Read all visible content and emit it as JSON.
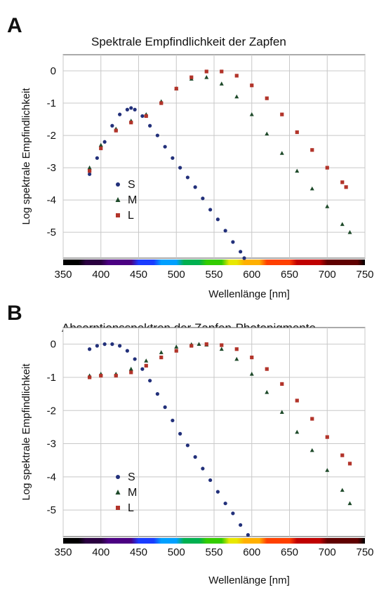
{
  "panels": [
    {
      "label": "A",
      "title": "Spektrale Empfindlichkeit der Zapfen"
    },
    {
      "label": "B",
      "title": "Absorptionsspektren der Zapfen-Photopigmente"
    }
  ],
  "chart_data": [
    {
      "type": "scatter",
      "title": "Spektrale Empfindlichkeit der Zapfen",
      "xlabel": "Wellenlänge [nm]",
      "ylabel": "Log spektrale Empfindlichkeit",
      "xlim": [
        350,
        750
      ],
      "ylim": [
        -5.8,
        0.5
      ],
      "xticks": [
        350,
        400,
        450,
        500,
        550,
        600,
        650,
        700,
        750
      ],
      "yticks": [
        0,
        -1,
        -2,
        -3,
        -4,
        -5
      ],
      "grid": true,
      "legend": "lower-left",
      "colors": {
        "S": "#22307a",
        "M": "#1e4a2a",
        "L": "#b2342a",
        "axis_bar": "spectrum"
      },
      "series": [
        {
          "name": "S",
          "x": [
            385,
            395,
            405,
            415,
            425,
            435,
            440,
            445,
            455,
            465,
            475,
            485,
            495,
            505,
            515,
            525,
            535,
            545,
            555,
            565,
            575,
            585,
            590
          ],
          "y": [
            -3.2,
            -2.7,
            -2.2,
            -1.7,
            -1.35,
            -1.2,
            -1.15,
            -1.2,
            -1.4,
            -1.7,
            -2.0,
            -2.35,
            -2.7,
            -3.0,
            -3.3,
            -3.6,
            -3.95,
            -4.3,
            -4.6,
            -4.95,
            -5.3,
            -5.6,
            -5.8
          ]
        },
        {
          "name": "M",
          "x": [
            385,
            400,
            420,
            440,
            460,
            480,
            500,
            520,
            540,
            560,
            580,
            600,
            620,
            640,
            660,
            680,
            700,
            720,
            730
          ],
          "y": [
            -3.0,
            -2.3,
            -1.8,
            -1.55,
            -1.35,
            -0.95,
            -0.55,
            -0.25,
            -0.2,
            -0.4,
            -0.8,
            -1.35,
            -1.95,
            -2.55,
            -3.1,
            -3.65,
            -4.2,
            -4.75,
            -5.0
          ]
        },
        {
          "name": "L",
          "x": [
            385,
            400,
            420,
            440,
            460,
            480,
            500,
            520,
            540,
            560,
            580,
            600,
            620,
            640,
            660,
            680,
            700,
            720,
            725
          ],
          "y": [
            -3.1,
            -2.4,
            -1.85,
            -1.6,
            -1.4,
            -1.0,
            -0.55,
            -0.2,
            -0.02,
            -0.02,
            -0.15,
            -0.45,
            -0.85,
            -1.35,
            -1.9,
            -2.45,
            -3.0,
            -3.45,
            -3.6
          ]
        }
      ]
    },
    {
      "type": "scatter",
      "title": "Absorptionsspektren der Zapfen-Photopigmente",
      "xlabel": "Wellenlänge [nm]",
      "ylabel": "Log spektrale Empfindlichkeit",
      "xlim": [
        350,
        750
      ],
      "ylim": [
        -5.8,
        0.5
      ],
      "xticks": [
        350,
        400,
        450,
        500,
        550,
        600,
        650,
        700,
        750
      ],
      "yticks": [
        0,
        -1,
        -2,
        -3,
        -4,
        -5
      ],
      "grid": true,
      "legend": "lower-left",
      "colors": {
        "S": "#22307a",
        "M": "#1e4a2a",
        "L": "#b2342a",
        "axis_bar": "spectrum"
      },
      "series": [
        {
          "name": "S",
          "x": [
            385,
            395,
            405,
            415,
            425,
            435,
            445,
            455,
            465,
            475,
            485,
            495,
            505,
            515,
            525,
            535,
            545,
            555,
            565,
            575,
            585,
            595
          ],
          "y": [
            -0.15,
            -0.05,
            0.0,
            0.0,
            -0.05,
            -0.2,
            -0.45,
            -0.75,
            -1.1,
            -1.5,
            -1.9,
            -2.3,
            -2.7,
            -3.05,
            -3.4,
            -3.75,
            -4.1,
            -4.45,
            -4.8,
            -5.1,
            -5.45,
            -5.75
          ]
        },
        {
          "name": "M",
          "x": [
            385,
            400,
            420,
            440,
            460,
            480,
            500,
            520,
            530,
            540,
            560,
            580,
            600,
            620,
            640,
            660,
            680,
            700,
            720,
            730
          ],
          "y": [
            -0.95,
            -0.9,
            -0.9,
            -0.75,
            -0.5,
            -0.25,
            -0.08,
            -0.01,
            0.0,
            -0.02,
            -0.15,
            -0.45,
            -0.9,
            -1.45,
            -2.05,
            -2.65,
            -3.2,
            -3.8,
            -4.4,
            -4.8
          ]
        },
        {
          "name": "L",
          "x": [
            385,
            400,
            420,
            440,
            460,
            480,
            500,
            520,
            540,
            560,
            580,
            600,
            620,
            640,
            660,
            680,
            700,
            720,
            730
          ],
          "y": [
            -1.0,
            -0.95,
            -0.95,
            -0.85,
            -0.65,
            -0.4,
            -0.2,
            -0.05,
            0.0,
            -0.03,
            -0.15,
            -0.4,
            -0.75,
            -1.2,
            -1.7,
            -2.25,
            -2.8,
            -3.35,
            -3.6
          ]
        }
      ]
    }
  ]
}
